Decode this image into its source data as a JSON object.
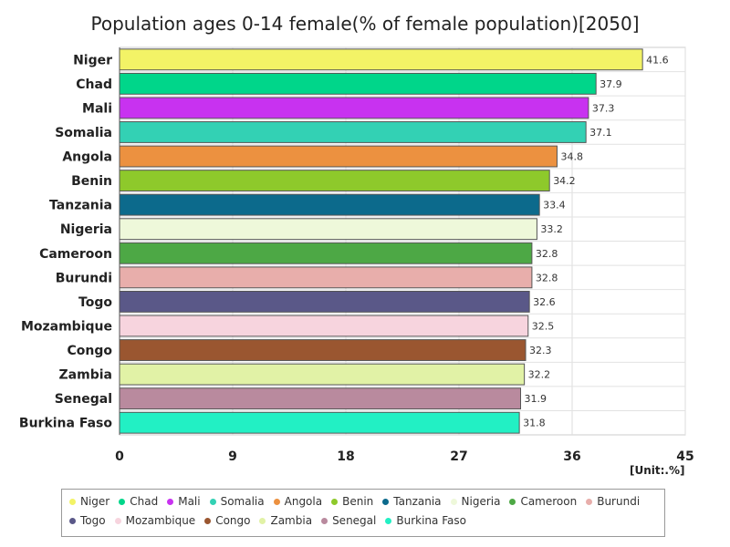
{
  "chart_data": {
    "type": "bar",
    "orientation": "horizontal",
    "title": "Population ages 0-14 female(% of female population)[2050]",
    "unit_label": "[Unit:.%]",
    "xlim": [
      0,
      45
    ],
    "xticks": [
      "0",
      "9",
      "18",
      "27",
      "36",
      "45"
    ],
    "categories": [
      "Niger",
      "Chad",
      "Mali",
      "Somalia",
      "Angola",
      "Benin",
      "Tanzania",
      "Nigeria",
      "Cameroon",
      "Burundi",
      "Togo",
      "Mozambique",
      "Congo",
      "Zambia",
      "Senegal",
      "Burkina Faso"
    ],
    "values": [
      41.6,
      37.9,
      37.3,
      37.1,
      34.8,
      34.2,
      33.4,
      33.2,
      32.8,
      32.8,
      32.6,
      32.5,
      32.3,
      32.2,
      31.9,
      31.8
    ],
    "value_labels": [
      "41.6",
      "37.9",
      "37.3",
      "37.1",
      "34.8",
      "34.2",
      "33.4",
      "33.2",
      "32.8",
      "32.8",
      "32.6",
      "32.5",
      "32.3",
      "32.2",
      "31.9",
      "31.8"
    ],
    "colors": [
      "#f3f366",
      "#00d68a",
      "#c832f0",
      "#33d1b4",
      "#ec9140",
      "#8ec92b",
      "#0c6a8c",
      "#eef8da",
      "#4da845",
      "#e8aeab",
      "#5a5888",
      "#f7d4de",
      "#9a5630",
      "#e1f2a6",
      "#b98a9e",
      "#22f0c4"
    ],
    "legend": {
      "labels": [
        "Niger",
        "Chad",
        "Mali",
        "Somalia",
        "Angola",
        "Benin",
        "Tanzania",
        "Nigeria",
        "Cameroon",
        "Burundi",
        "Togo",
        "Mozambique",
        "Congo",
        "Zambia",
        "Senegal",
        "Burkina Faso"
      ],
      "placement": "bottom"
    }
  }
}
